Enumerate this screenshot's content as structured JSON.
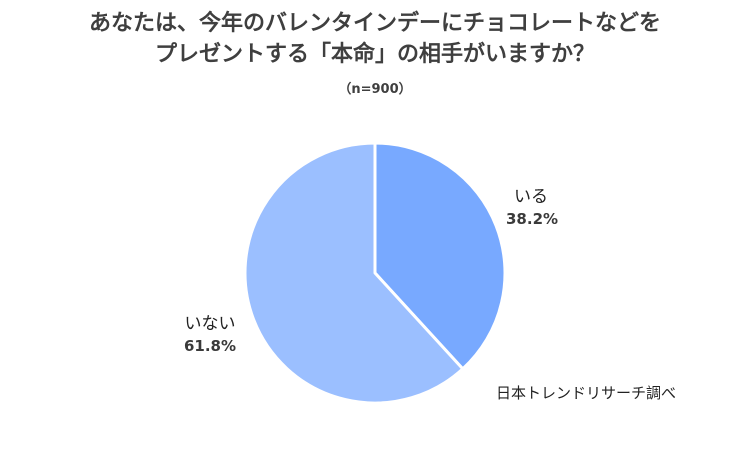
{
  "chart_data": {
    "type": "pie",
    "title_lines": [
      "あなたは、今年のバレンタインデーにチョコレートなどを",
      "プレゼントする「本命」の相手がいますか？"
    ],
    "subtitle": "（n=900）",
    "slices": [
      {
        "label": "いる",
        "value": 38.2,
        "display": "38.2%",
        "color": "#78a9ff"
      },
      {
        "label": "いない",
        "value": 61.8,
        "display": "61.8%",
        "color": "#9bbfff"
      }
    ],
    "start_angle": "12-o'clock",
    "direction": "clockwise",
    "legend": "none"
  },
  "source": "日本トレンドリサーチ調べ"
}
